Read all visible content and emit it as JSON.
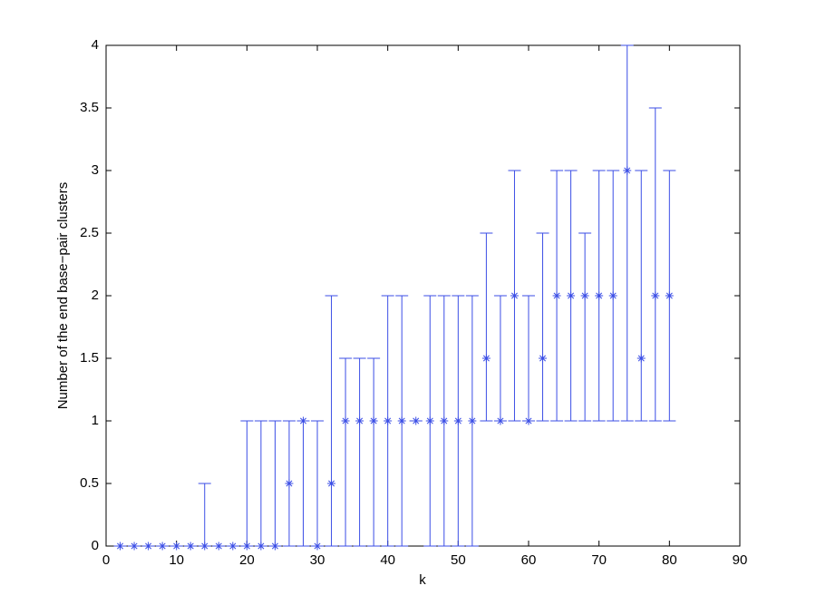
{
  "chart_data": {
    "type": "errorbar",
    "xlabel": "k",
    "ylabel": "Number of the end base−pair clusters",
    "xlim": [
      0,
      90
    ],
    "xticks": [
      0,
      10,
      20,
      30,
      40,
      50,
      60,
      70,
      80,
      90
    ],
    "ylim": [
      0,
      4
    ],
    "yticks": [
      0,
      0.5,
      1,
      1.5,
      2,
      2.5,
      3,
      3.5,
      4
    ],
    "grid": false,
    "series": [
      {
        "color": "#3b4ee6",
        "x": [
          2,
          4,
          6,
          8,
          10,
          12,
          14,
          16,
          18,
          20,
          22,
          24,
          26,
          28,
          30,
          32,
          34,
          36,
          38,
          40,
          42,
          44,
          46,
          48,
          50,
          52,
          54,
          56,
          58,
          60,
          62,
          64,
          66,
          68,
          70,
          72,
          74,
          76,
          78,
          80
        ],
        "values": [
          0,
          0,
          0,
          0,
          0,
          0,
          0,
          0,
          0,
          0,
          0,
          0,
          0.5,
          1,
          0,
          0.5,
          1,
          1,
          1,
          1,
          1,
          1,
          1,
          1,
          1,
          1,
          1.5,
          1,
          2,
          1,
          1.5,
          2,
          2,
          2,
          2,
          2,
          3,
          1.5,
          2,
          2
        ],
        "lower": [
          0,
          0,
          0,
          0,
          0,
          0,
          0,
          0,
          0,
          0,
          0,
          0,
          0,
          0,
          0,
          0,
          0,
          0,
          0,
          0,
          0,
          1,
          0,
          0,
          0,
          0,
          1,
          1,
          1,
          1,
          1,
          1,
          1,
          1,
          1,
          1,
          1,
          1,
          1,
          1
        ],
        "upper": [
          0,
          0,
          0,
          0,
          0,
          0,
          0.5,
          0,
          0,
          1,
          1,
          1,
          1,
          1,
          1,
          2,
          1.5,
          1.5,
          1.5,
          2,
          2,
          1,
          2,
          2,
          2,
          2,
          2.5,
          2,
          3,
          2,
          2.5,
          3,
          3,
          2.5,
          3,
          3,
          4,
          3,
          3.5,
          3
        ]
      }
    ]
  }
}
